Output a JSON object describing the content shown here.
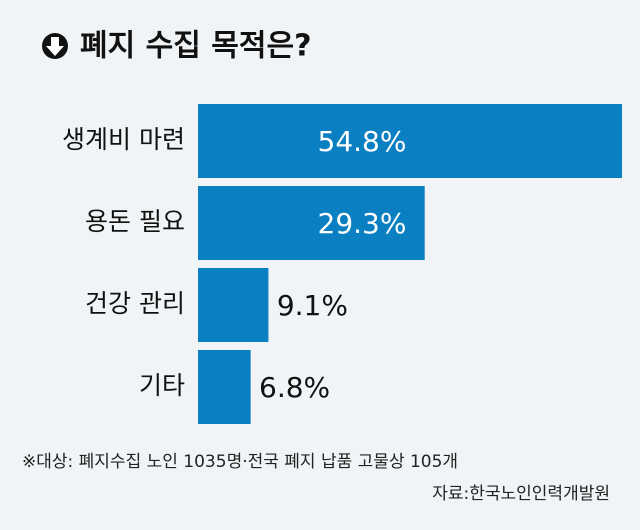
{
  "chart_data": {
    "type": "bar",
    "orientation": "horizontal",
    "title": "폐지 수집 목적은?",
    "categories": [
      "생계비 마련",
      "용돈 필요",
      "건강 관리",
      "기타"
    ],
    "values": [
      54.8,
      29.3,
      9.1,
      6.8
    ],
    "value_labels": [
      "54.8%",
      "29.3%",
      "9.1%",
      "6.8%"
    ],
    "color": "#0a7fc2",
    "notes": [
      "※대상: 폐지수집 노인 1035명·전국 폐지 납품 고물상 105개",
      "자료:한국노인인력개발원"
    ]
  }
}
